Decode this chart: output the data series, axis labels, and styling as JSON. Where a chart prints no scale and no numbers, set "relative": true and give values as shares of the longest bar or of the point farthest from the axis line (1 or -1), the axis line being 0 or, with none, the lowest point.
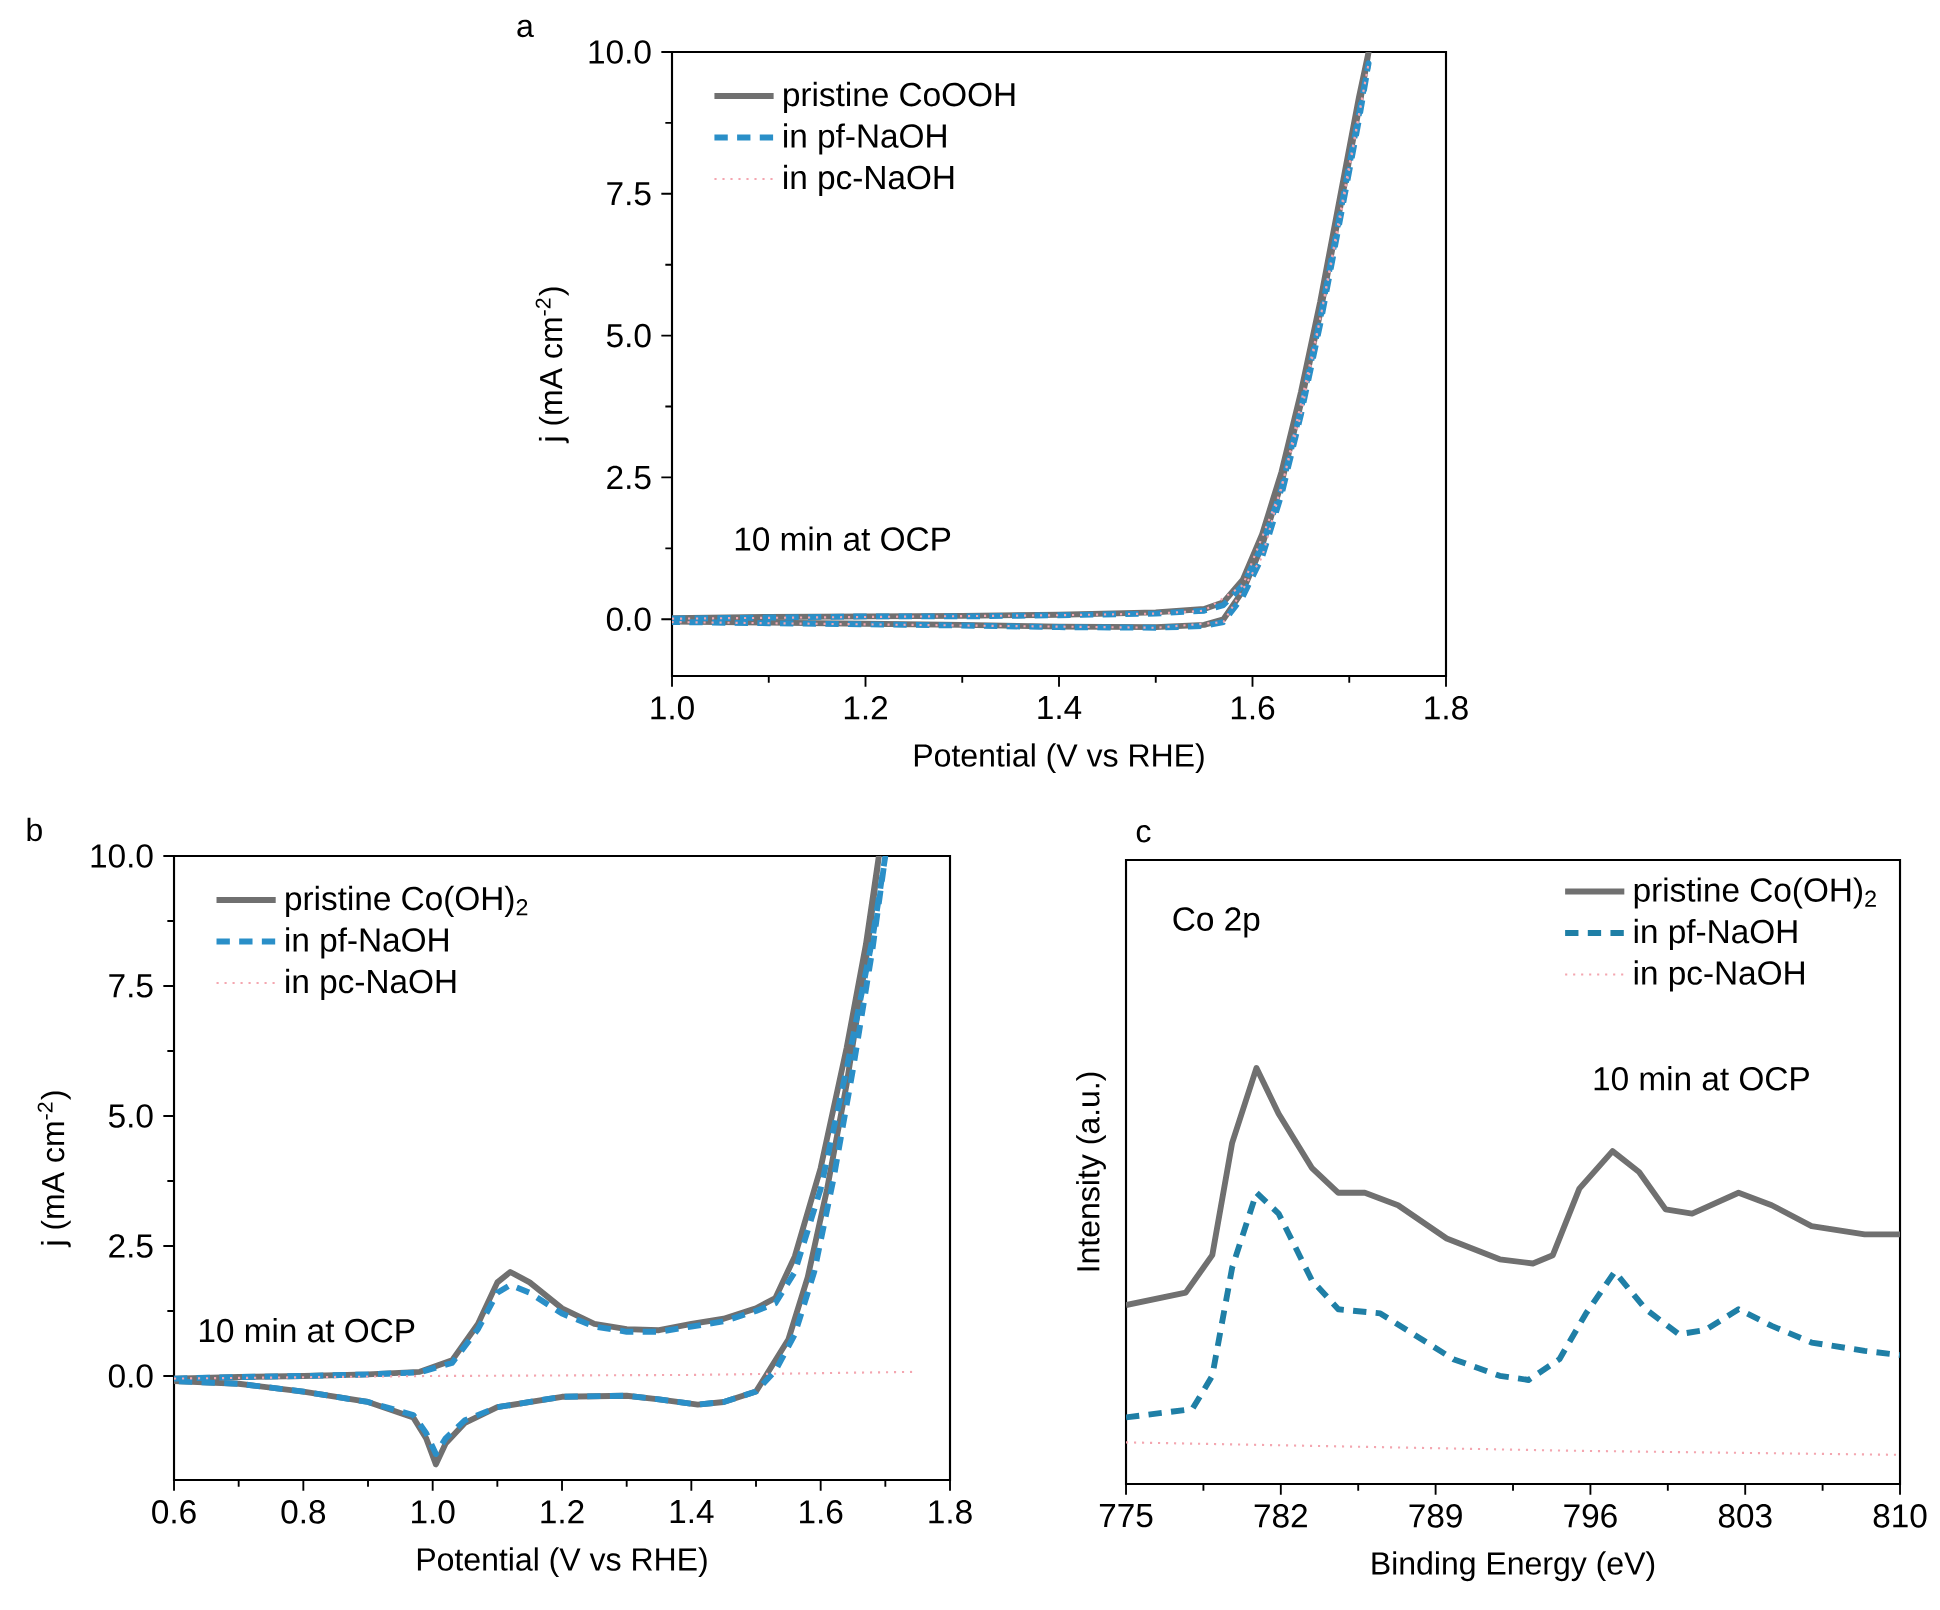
{
  "chart_data": [
    {
      "type": "line",
      "title": "a",
      "xlabel": "Potential (V vs RHE)",
      "ylabel": "j (mA cm$^{-2}$)",
      "xlim": [
        1.0,
        1.8
      ],
      "ylim": [
        -1.0,
        10.0
      ],
      "xticks": [
        {
          "value": 1,
          "label": "1.0"
        },
        1.2,
        1.4,
        1.6,
        1.8
      ],
      "yticks": [
        {
          "value": 0,
          "label": "0.0"
        },
        {
          "value": 2.5,
          "label": "2.5"
        },
        {
          "value": 5,
          "label": "5.0"
        },
        {
          "value": 7.5,
          "label": "7.5"
        },
        {
          "value": 10,
          "label": "10.0"
        }
      ],
      "legend": "top left",
      "grid": false,
      "marker": "none",
      "annotations": [
        "10 min at OCP"
      ],
      "series": [
        {
          "name": "pristine CoOOH",
          "color": "#707070",
          "line_style": "solid",
          "x": [
            1.0,
            1.1,
            1.2,
            1.3,
            1.4,
            1.5,
            1.55,
            1.57,
            1.59,
            1.61,
            1.63,
            1.65,
            1.67,
            1.69,
            1.71,
            1.72,
            1.71,
            1.69,
            1.67,
            1.65,
            1.63,
            1.61,
            1.59,
            1.57,
            1.55,
            1.5,
            1.4,
            1.3,
            1.2,
            1.1,
            1.0
          ],
          "values": [
            0.02,
            0.04,
            0.05,
            0.06,
            0.08,
            0.12,
            0.18,
            0.3,
            0.7,
            1.5,
            2.6,
            4.0,
            5.6,
            7.4,
            9.2,
            10.0,
            9.0,
            7.2,
            5.4,
            3.8,
            2.4,
            1.3,
            0.5,
            0.0,
            -0.1,
            -0.14,
            -0.13,
            -0.1,
            -0.08,
            -0.06,
            -0.04
          ]
        },
        {
          "name": "in pf-NaOH",
          "color": "#2a8fc8",
          "line_style": "dashed",
          "x": [
            1.0,
            1.1,
            1.2,
            1.3,
            1.4,
            1.5,
            1.55,
            1.57,
            1.59,
            1.61,
            1.63,
            1.65,
            1.67,
            1.69,
            1.71,
            1.72,
            1.71,
            1.69,
            1.67,
            1.65,
            1.63,
            1.61,
            1.59,
            1.57,
            1.55,
            1.5,
            1.4,
            1.3,
            1.2,
            1.1,
            1.0
          ],
          "values": [
            0.01,
            0.03,
            0.05,
            0.05,
            0.07,
            0.1,
            0.15,
            0.25,
            0.6,
            1.3,
            2.3,
            3.7,
            5.3,
            7.1,
            8.9,
            9.8,
            8.8,
            7.0,
            5.2,
            3.6,
            2.2,
            1.1,
            0.4,
            -0.05,
            -0.12,
            -0.15,
            -0.14,
            -0.11,
            -0.09,
            -0.07,
            -0.05
          ]
        },
        {
          "name": "in pc-NaOH",
          "color": "#f4a6b0",
          "line_style": "dotted",
          "x": [
            1.0,
            1.2,
            1.4,
            1.5,
            1.55,
            1.59,
            1.63,
            1.67,
            1.71,
            1.72,
            1.69,
            1.65,
            1.61,
            1.57,
            1.5,
            1.3,
            1.0
          ],
          "values": [
            0.01,
            0.04,
            0.07,
            0.1,
            0.15,
            0.6,
            2.3,
            5.3,
            8.9,
            9.8,
            7.0,
            3.6,
            1.1,
            -0.05,
            -0.15,
            -0.11,
            -0.05
          ]
        }
      ]
    },
    {
      "type": "line",
      "title": "b",
      "xlabel": "Potential (V vs RHE)",
      "ylabel": "j (mA cm$^{-2}$)",
      "xlim": [
        0.6,
        1.8
      ],
      "ylim": [
        -2.0,
        10.0
      ],
      "xticks": [
        0.6,
        0.8,
        {
          "value": 1,
          "label": "1.0"
        },
        1.2,
        1.4,
        1.6,
        1.8
      ],
      "yticks": [
        {
          "value": 0,
          "label": "0.0"
        },
        {
          "value": 2.5,
          "label": "2.5"
        },
        {
          "value": 5,
          "label": "5.0"
        },
        {
          "value": 7.5,
          "label": "7.5"
        },
        {
          "value": 10,
          "label": "10.0"
        }
      ],
      "legend": "top left",
      "grid": false,
      "marker": "none",
      "annotations": [
        "10 min at OCP"
      ],
      "series": [
        {
          "name": "pristine Co(OH)$_{2}$",
          "color": "#707070",
          "line_style": "solid",
          "x": [
            0.6,
            0.7,
            0.8,
            0.9,
            0.98,
            1.03,
            1.07,
            1.1,
            1.12,
            1.15,
            1.2,
            1.25,
            1.3,
            1.35,
            1.4,
            1.45,
            1.5,
            1.53,
            1.56,
            1.6,
            1.64,
            1.67,
            1.69,
            1.67,
            1.64,
            1.61,
            1.58,
            1.55,
            1.52,
            1.5,
            1.45,
            1.41,
            1.35,
            1.3,
            1.2,
            1.1,
            1.05,
            1.02,
            1.005,
            0.99,
            0.97,
            0.9,
            0.8,
            0.7,
            0.6
          ],
          "values": [
            -0.05,
            -0.02,
            0.0,
            0.03,
            0.08,
            0.3,
            1.0,
            1.8,
            2.0,
            1.8,
            1.3,
            1.0,
            0.9,
            0.88,
            1.0,
            1.1,
            1.3,
            1.5,
            2.3,
            4.0,
            6.3,
            8.3,
            10.0,
            8.0,
            5.6,
            3.6,
            1.9,
            0.7,
            0.1,
            -0.3,
            -0.5,
            -0.55,
            -0.45,
            -0.38,
            -0.4,
            -0.6,
            -0.9,
            -1.3,
            -1.7,
            -1.2,
            -0.8,
            -0.5,
            -0.3,
            -0.15,
            -0.1
          ]
        },
        {
          "name": "in pf-NaOH",
          "color": "#2a8fc8",
          "line_style": "dashed",
          "x": [
            0.6,
            0.7,
            0.8,
            0.9,
            0.98,
            1.03,
            1.07,
            1.1,
            1.12,
            1.15,
            1.2,
            1.25,
            1.3,
            1.35,
            1.4,
            1.45,
            1.5,
            1.53,
            1.56,
            1.6,
            1.64,
            1.68,
            1.7,
            1.68,
            1.65,
            1.62,
            1.59,
            1.56,
            1.53,
            1.5,
            1.45,
            1.41,
            1.35,
            1.3,
            1.2,
            1.1,
            1.05,
            1.02,
            1.005,
            0.99,
            0.97,
            0.9,
            0.8,
            0.7,
            0.6
          ],
          "values": [
            -0.05,
            -0.02,
            0.0,
            0.03,
            0.07,
            0.25,
            0.9,
            1.6,
            1.75,
            1.6,
            1.2,
            0.95,
            0.85,
            0.85,
            0.95,
            1.05,
            1.25,
            1.4,
            2.0,
            3.6,
            5.9,
            8.4,
            10.0,
            8.2,
            5.9,
            3.8,
            2.0,
            0.8,
            0.1,
            -0.3,
            -0.5,
            -0.55,
            -0.45,
            -0.38,
            -0.4,
            -0.6,
            -0.85,
            -1.2,
            -1.5,
            -1.1,
            -0.75,
            -0.5,
            -0.3,
            -0.15,
            -0.1
          ]
        },
        {
          "name": "in pc-NaOH",
          "color": "#f4a6b0",
          "line_style": "dotted",
          "x": [
            0.6,
            1.0,
            1.4,
            1.75
          ],
          "values": [
            -0.05,
            0.0,
            0.02,
            0.08
          ]
        }
      ]
    },
    {
      "type": "line",
      "title": "c",
      "xlabel": "Binding Energy (eV)",
      "ylabel": "Intensity (a.u.)",
      "xlim": [
        775,
        810
      ],
      "xticks": [
        775,
        782,
        789,
        796,
        803,
        810
      ],
      "relative": true,
      "tick_labels": "x",
      "legend": "top right",
      "grid": false,
      "marker": "none",
      "annotations": [
        "Co 2p",
        "10 min at OCP"
      ],
      "series": [
        {
          "name": "pristine Co(OH)$_{2}$",
          "color": "#707070",
          "line_style": "solid",
          "x": [
            775,
            777.7,
            778.9,
            779.8,
            780.9,
            781.9,
            783.4,
            784.6,
            785.8,
            787.3,
            789.5,
            791.9,
            793.4,
            794.3,
            795.5,
            797.0,
            798.2,
            799.4,
            800.6,
            802.7,
            804.2,
            806.0,
            808.4,
            810
          ],
          "values": [
            0.43,
            0.46,
            0.55,
            0.82,
            1.0,
            0.89,
            0.76,
            0.7,
            0.7,
            0.67,
            0.59,
            0.54,
            0.53,
            0.55,
            0.71,
            0.8,
            0.75,
            0.66,
            0.65,
            0.7,
            0.67,
            0.62,
            0.6,
            0.6
          ]
        },
        {
          "name": "in pf-NaOH",
          "color": "#1f7fa6",
          "line_style": "dashed",
          "x": [
            775,
            778.0,
            778.9,
            779.8,
            780.9,
            781.9,
            783.4,
            784.6,
            786.5,
            788.0,
            789.8,
            791.9,
            793.2,
            794.6,
            795.8,
            797.1,
            798.5,
            800.0,
            801.2,
            802.7,
            804.2,
            806.0,
            808.4,
            810
          ],
          "values": [
            0.16,
            0.18,
            0.26,
            0.52,
            0.7,
            0.65,
            0.49,
            0.42,
            0.41,
            0.36,
            0.3,
            0.26,
            0.25,
            0.3,
            0.41,
            0.51,
            0.42,
            0.36,
            0.37,
            0.42,
            0.38,
            0.34,
            0.32,
            0.31
          ]
        },
        {
          "name": "in pc-NaOH",
          "color": "#f4a6b0",
          "line_style": "dotted",
          "x": [
            775,
            785,
            795,
            810
          ],
          "values": [
            0.1,
            0.09,
            0.08,
            0.07
          ]
        }
      ]
    }
  ]
}
